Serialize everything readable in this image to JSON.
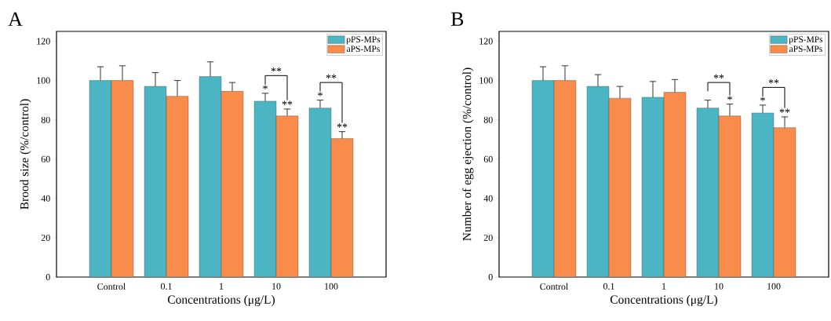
{
  "chart_data": [
    {
      "type": "bar",
      "title": "A",
      "xlabel": "Concentrations (μg/L)",
      "ylabel": "Brood size (%/control)",
      "categories": [
        "Control",
        "0.1",
        "1",
        "10",
        "100"
      ],
      "series": [
        {
          "name": "pPS-MPs",
          "color": "#4bb5c3",
          "values": [
            100,
            97,
            102,
            89.5,
            86
          ],
          "errors": [
            7,
            7,
            7.5,
            4,
            4
          ]
        },
        {
          "name": "aPS-MPs",
          "color": "#f98c4b",
          "values": [
            100,
            92,
            94.5,
            82,
            70.5
          ],
          "errors": [
            7.5,
            8,
            4.5,
            3.5,
            3.5
          ]
        }
      ],
      "ylim": [
        0,
        125
      ],
      "yticks": [
        0,
        20,
        40,
        60,
        80,
        100,
        120
      ],
      "legend": "top right",
      "annotations": [
        "*",
        "**",
        "**",
        "*",
        "**",
        "**"
      ]
    },
    {
      "type": "bar",
      "title": "B",
      "xlabel": "Concentrations (μg/L)",
      "ylabel": "Number of egg ejection (%/control)",
      "categories": [
        "Control",
        "0.1",
        "1",
        "10",
        "100"
      ],
      "series": [
        {
          "name": "pPS-MPs",
          "color": "#4bb5c3",
          "values": [
            100,
            97,
            91.5,
            86,
            83.5
          ],
          "errors": [
            7,
            6,
            8,
            4,
            4
          ]
        },
        {
          "name": "aPS-MPs",
          "color": "#f98c4b",
          "values": [
            100,
            91,
            94,
            82,
            76
          ],
          "errors": [
            7.5,
            6,
            6.5,
            6,
            5.5
          ]
        }
      ],
      "ylim": [
        0,
        125
      ],
      "yticks": [
        0,
        20,
        40,
        60,
        80,
        100,
        120
      ],
      "legend": "top right",
      "annotations": [
        "**",
        "*",
        "*",
        "**",
        "**"
      ]
    }
  ]
}
